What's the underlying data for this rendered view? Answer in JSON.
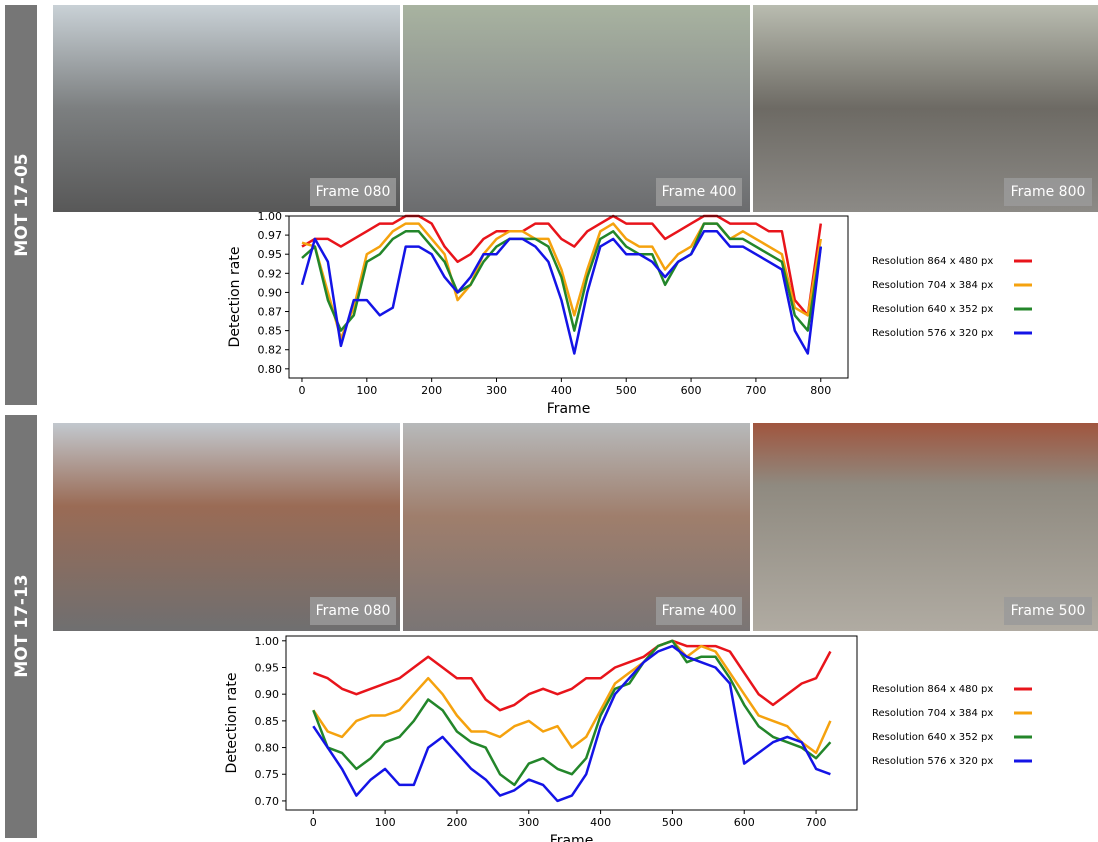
{
  "panels": [
    {
      "label": "MOT 17-05",
      "frames": [
        "Frame 080",
        "Frame 400",
        "Frame 800"
      ]
    },
    {
      "label": "MOT 17-13",
      "frames": [
        "Frame 080",
        "Frame 400",
        "Frame 500"
      ]
    }
  ],
  "chart_data": [
    {
      "type": "line",
      "xlabel": "Frame",
      "ylabel": "Detection rate",
      "legend": "right",
      "grid": false,
      "x": [
        0,
        20,
        40,
        60,
        80,
        100,
        120,
        140,
        160,
        180,
        200,
        220,
        240,
        260,
        280,
        300,
        320,
        340,
        360,
        380,
        400,
        420,
        440,
        460,
        480,
        500,
        520,
        540,
        560,
        580,
        600,
        620,
        640,
        660,
        680,
        700,
        720,
        740,
        760,
        780,
        800
      ],
      "xlim": [
        -20,
        842
      ],
      "xticks": [
        0,
        100,
        200,
        300,
        400,
        500,
        600,
        700,
        800
      ],
      "ylim": [
        0.788,
        1.0
      ],
      "yticks": [
        {
          "value": 1.0,
          "label": "1.00"
        },
        {
          "value": 0.975,
          "label": "0.97"
        },
        0.95,
        {
          "value": 0.925,
          "label": "0.92"
        },
        {
          "value": 0.9,
          "label": "0.90"
        },
        {
          "value": 0.875,
          "label": "0.87"
        },
        0.85,
        {
          "value": 0.825,
          "label": "0.82"
        },
        {
          "value": 0.8,
          "label": "0.80"
        }
      ],
      "series": [
        {
          "name": "Resolution 864 x 480 px",
          "color": "#e8141b",
          "values": [
            0.96,
            0.97,
            0.97,
            0.96,
            0.97,
            0.98,
            0.99,
            0.99,
            1.0,
            1.0,
            0.99,
            0.96,
            0.94,
            0.95,
            0.97,
            0.98,
            0.98,
            0.98,
            0.99,
            0.99,
            0.97,
            0.96,
            0.98,
            0.99,
            1.0,
            0.99,
            0.99,
            0.99,
            0.97,
            0.98,
            0.99,
            1.0,
            1.0,
            0.99,
            0.99,
            0.99,
            0.98,
            0.98,
            0.89,
            0.87,
            0.99
          ]
        },
        {
          "name": "Resolution 704 x 384 px",
          "color": "#f5a20e",
          "values": [
            0.965,
            0.96,
            0.9,
            0.84,
            0.88,
            0.95,
            0.96,
            0.98,
            0.99,
            0.99,
            0.97,
            0.95,
            0.89,
            0.91,
            0.95,
            0.97,
            0.98,
            0.98,
            0.97,
            0.97,
            0.93,
            0.87,
            0.93,
            0.98,
            0.99,
            0.97,
            0.96,
            0.96,
            0.93,
            0.95,
            0.96,
            0.99,
            0.99,
            0.97,
            0.98,
            0.97,
            0.96,
            0.95,
            0.88,
            0.87,
            0.97
          ]
        },
        {
          "name": "Resolution 640 x 352 px",
          "color": "#23862a",
          "values": [
            0.945,
            0.96,
            0.89,
            0.85,
            0.87,
            0.94,
            0.95,
            0.97,
            0.98,
            0.98,
            0.96,
            0.94,
            0.9,
            0.91,
            0.94,
            0.96,
            0.97,
            0.97,
            0.97,
            0.96,
            0.92,
            0.85,
            0.92,
            0.97,
            0.98,
            0.96,
            0.95,
            0.95,
            0.91,
            0.94,
            0.95,
            0.99,
            0.99,
            0.97,
            0.97,
            0.96,
            0.95,
            0.94,
            0.87,
            0.85,
            0.96
          ]
        },
        {
          "name": "Resolution 576 x 320 px",
          "color": "#1414e6",
          "values": [
            0.91,
            0.97,
            0.94,
            0.83,
            0.89,
            0.89,
            0.87,
            0.88,
            0.96,
            0.96,
            0.95,
            0.92,
            0.9,
            0.92,
            0.95,
            0.95,
            0.97,
            0.97,
            0.96,
            0.94,
            0.89,
            0.82,
            0.9,
            0.96,
            0.97,
            0.95,
            0.95,
            0.94,
            0.92,
            0.94,
            0.95,
            0.98,
            0.98,
            0.96,
            0.96,
            0.95,
            0.94,
            0.93,
            0.85,
            0.82,
            0.96
          ]
        }
      ]
    },
    {
      "type": "line",
      "xlabel": "Frame",
      "ylabel": "Detection rate",
      "legend": "right",
      "grid": false,
      "x": [
        0,
        20,
        40,
        60,
        80,
        100,
        120,
        140,
        160,
        180,
        200,
        220,
        240,
        260,
        280,
        300,
        320,
        340,
        360,
        380,
        400,
        420,
        440,
        460,
        480,
        500,
        520,
        540,
        560,
        580,
        600,
        620,
        640,
        660,
        680,
        700,
        720
      ],
      "xlim": [
        -38,
        757
      ],
      "xticks": [
        0,
        100,
        200,
        300,
        400,
        500,
        600,
        700
      ],
      "ylim": [
        0.683,
        1.009
      ],
      "yticks": [
        {
          "value": 1.0,
          "label": "1.00"
        },
        0.95,
        {
          "value": 0.9,
          "label": "0.90"
        },
        0.85,
        {
          "value": 0.8,
          "label": "0.80"
        },
        0.75,
        {
          "value": 0.7,
          "label": "0.70"
        }
      ],
      "series": [
        {
          "name": "Resolution 864 x 480 px",
          "color": "#e8141b",
          "values": [
            0.94,
            0.93,
            0.91,
            0.9,
            0.91,
            0.92,
            0.93,
            0.95,
            0.97,
            0.95,
            0.93,
            0.93,
            0.89,
            0.87,
            0.88,
            0.9,
            0.91,
            0.9,
            0.91,
            0.93,
            0.93,
            0.95,
            0.96,
            0.97,
            0.99,
            1.0,
            0.99,
            0.99,
            0.99,
            0.98,
            0.94,
            0.9,
            0.88,
            0.9,
            0.92,
            0.93,
            0.98
          ]
        },
        {
          "name": "Resolution 704 x 384 px",
          "color": "#f5a20e",
          "values": [
            0.87,
            0.83,
            0.82,
            0.85,
            0.86,
            0.86,
            0.87,
            0.9,
            0.93,
            0.9,
            0.86,
            0.83,
            0.83,
            0.82,
            0.84,
            0.85,
            0.83,
            0.84,
            0.8,
            0.82,
            0.87,
            0.92,
            0.94,
            0.96,
            0.99,
            1.0,
            0.97,
            0.99,
            0.98,
            0.94,
            0.9,
            0.86,
            0.85,
            0.84,
            0.81,
            0.79,
            0.85
          ]
        },
        {
          "name": "Resolution 640 x 352 px",
          "color": "#23862a",
          "values": [
            0.87,
            0.8,
            0.79,
            0.76,
            0.78,
            0.81,
            0.82,
            0.85,
            0.89,
            0.87,
            0.83,
            0.81,
            0.8,
            0.75,
            0.73,
            0.77,
            0.78,
            0.76,
            0.75,
            0.78,
            0.86,
            0.91,
            0.92,
            0.96,
            0.99,
            1.0,
            0.96,
            0.97,
            0.97,
            0.93,
            0.88,
            0.84,
            0.82,
            0.81,
            0.8,
            0.78,
            0.81
          ]
        },
        {
          "name": "Resolution 576 x 320 px",
          "color": "#1414e6",
          "values": [
            0.84,
            0.8,
            0.76,
            0.71,
            0.74,
            0.76,
            0.73,
            0.73,
            0.8,
            0.82,
            0.79,
            0.76,
            0.74,
            0.71,
            0.72,
            0.74,
            0.73,
            0.7,
            0.71,
            0.75,
            0.84,
            0.9,
            0.93,
            0.96,
            0.98,
            0.99,
            0.97,
            0.96,
            0.95,
            0.92,
            0.77,
            0.79,
            0.81,
            0.82,
            0.81,
            0.76,
            0.75
          ]
        }
      ]
    }
  ]
}
